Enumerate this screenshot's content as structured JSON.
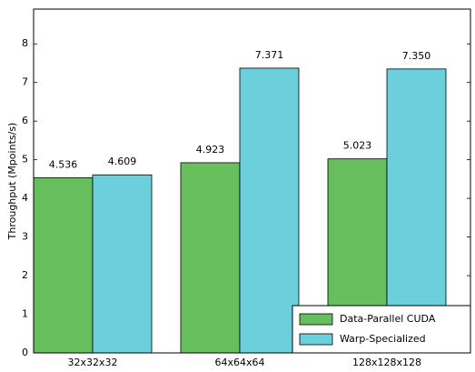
{
  "chart_data": {
    "type": "bar",
    "y_label": "Throughput (Mpoints/s)",
    "categories": [
      "32x32x32",
      "64x64x64",
      "128x128x128"
    ],
    "series": [
      {
        "name": "Data-Parallel CUDA",
        "color": "#66bf5c",
        "values": [
          4.536,
          4.923,
          5.023
        ],
        "value_labels": [
          "4.536",
          "4.923",
          "5.023"
        ]
      },
      {
        "name": "Warp-Specialized",
        "color": "#6ccfdc",
        "values": [
          4.609,
          7.371,
          7.35
        ],
        "value_labels": [
          "4.609",
          "7.371",
          "7.350"
        ]
      }
    ],
    "ylim": [
      0,
      8.9
    ],
    "yticks": [
      0,
      1,
      2,
      3,
      4,
      5,
      6,
      7,
      8
    ],
    "legend": "lower right"
  }
}
